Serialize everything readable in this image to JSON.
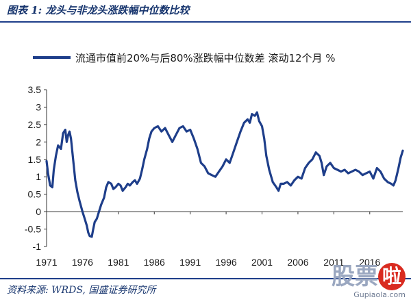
{
  "figure": {
    "title": "图表 1:  龙头与非龙头涨跌幅中位数比较",
    "source": "资料来源:  WRDS,  国盛证券研究所"
  },
  "watermark": {
    "chars": [
      "股",
      "票",
      "啦"
    ],
    "url": "Gupiaola.com"
  },
  "colors": {
    "line": "#1e3e8a",
    "rule": "#1e3e8a",
    "title": "#17356e"
  },
  "chart_data": {
    "type": "line",
    "legend_position": "top",
    "grid": false,
    "xlim": [
      1971,
      2020.6
    ],
    "ylim": [
      -1,
      3.5
    ],
    "y_ticks": [
      -1,
      -0.5,
      0,
      0.5,
      1,
      1.5,
      2,
      2.5,
      3,
      3.5
    ],
    "y_tick_labels": [
      "-1",
      "-0.5",
      "0",
      "0.5",
      "1",
      "1.5",
      "2",
      "2.5",
      "3",
      "3.5"
    ],
    "x_ticks": [
      1971,
      1976,
      1981,
      1986,
      1991,
      1996,
      2001,
      2006,
      2011,
      2016
    ],
    "x_tick_labels": [
      "1971",
      "1976",
      "1981",
      "1986",
      "1991",
      "1996",
      "2001",
      "2006",
      "2011",
      "2016"
    ],
    "series": [
      {
        "name": "流通市值前20%与后80%涨跌幅中位数差 滚动12个月  %",
        "x": [
          1971.0,
          1971.2,
          1971.5,
          1971.8,
          1972.0,
          1972.3,
          1972.6,
          1973.0,
          1973.3,
          1973.6,
          1973.8,
          1974.0,
          1974.2,
          1974.4,
          1974.6,
          1974.8,
          1975.0,
          1975.3,
          1975.6,
          1976.0,
          1976.3,
          1976.6,
          1976.8,
          1977.0,
          1977.3,
          1977.5,
          1977.7,
          1978.0,
          1978.3,
          1978.6,
          1979.0,
          1979.3,
          1979.6,
          1980.0,
          1980.3,
          1980.6,
          1981.0,
          1981.3,
          1981.6,
          1982.0,
          1982.3,
          1982.6,
          1983.0,
          1983.3,
          1983.6,
          1984.0,
          1984.3,
          1984.6,
          1985.0,
          1985.3,
          1985.6,
          1986.0,
          1986.5,
          1987.0,
          1987.5,
          1988.0,
          1988.5,
          1989.0,
          1989.5,
          1990.0,
          1990.5,
          1991.0,
          1991.5,
          1992.0,
          1992.5,
          1993.0,
          1993.5,
          1994.0,
          1994.5,
          1995.0,
          1995.5,
          1996.0,
          1996.5,
          1997.0,
          1997.5,
          1998.0,
          1998.5,
          1999.0,
          1999.3,
          1999.6,
          2000.0,
          2000.3,
          2000.6,
          2001.0,
          2001.3,
          2001.6,
          2002.0,
          2002.5,
          2003.0,
          2003.3,
          2003.6,
          2004.0,
          2004.5,
          2005.0,
          2005.5,
          2006.0,
          2006.5,
          2007.0,
          2007.5,
          2008.0,
          2008.5,
          2009.0,
          2009.3,
          2009.6,
          2010.0,
          2010.5,
          2011.0,
          2011.5,
          2012.0,
          2012.5,
          2013.0,
          2013.5,
          2014.0,
          2014.5,
          2015.0,
          2015.5,
          2016.0,
          2016.5,
          2017.0,
          2017.5,
          2018.0,
          2018.5,
          2019.0,
          2019.3,
          2019.6,
          2020.0,
          2020.3,
          2020.6
        ],
        "values": [
          1.45,
          1.1,
          0.75,
          0.7,
          1.2,
          1.6,
          1.9,
          1.8,
          2.25,
          2.35,
          2.0,
          2.2,
          2.3,
          2.1,
          1.7,
          1.3,
          0.9,
          0.55,
          0.3,
          0.0,
          -0.2,
          -0.4,
          -0.6,
          -0.7,
          -0.72,
          -0.5,
          -0.3,
          -0.2,
          0.0,
          0.2,
          0.4,
          0.7,
          0.85,
          0.8,
          0.65,
          0.7,
          0.8,
          0.75,
          0.6,
          0.7,
          0.8,
          0.75,
          0.85,
          0.9,
          0.8,
          0.95,
          1.2,
          1.5,
          1.8,
          2.1,
          2.3,
          2.4,
          2.45,
          2.3,
          2.4,
          2.2,
          2.0,
          2.2,
          2.4,
          2.45,
          2.3,
          2.35,
          2.1,
          1.8,
          1.4,
          1.3,
          1.1,
          1.05,
          1.0,
          1.15,
          1.3,
          1.5,
          1.4,
          1.7,
          2.0,
          2.3,
          2.55,
          2.65,
          2.55,
          2.8,
          2.75,
          2.85,
          2.6,
          2.45,
          2.1,
          1.6,
          1.2,
          0.85,
          0.7,
          0.6,
          0.8,
          0.8,
          0.85,
          0.75,
          0.9,
          1.0,
          0.95,
          1.25,
          1.4,
          1.5,
          1.7,
          1.6,
          1.4,
          1.05,
          1.3,
          1.4,
          1.25,
          1.2,
          1.15,
          1.2,
          1.1,
          1.15,
          1.2,
          1.15,
          1.05,
          1.1,
          1.15,
          0.95,
          1.25,
          1.15,
          0.95,
          0.85,
          0.8,
          0.75,
          0.9,
          1.25,
          1.55,
          1.75
        ]
      }
    ]
  }
}
